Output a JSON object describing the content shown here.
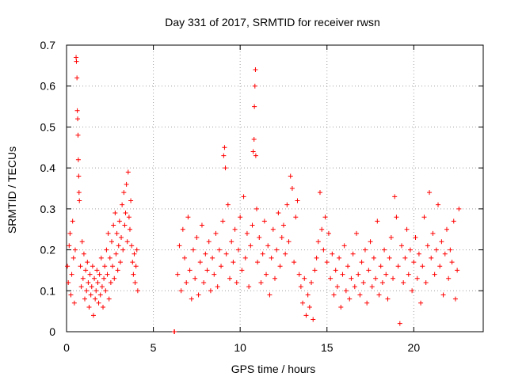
{
  "chart_data": {
    "type": "scatter",
    "title": "Day 331 of 2017, SRMTID for receiver rwsn",
    "xlabel": "GPS time / hours",
    "ylabel": "SRMTID / TECUs",
    "xlim": [
      0,
      24
    ],
    "ylim": [
      0,
      0.7
    ],
    "xticks": [
      "0",
      "5",
      "10",
      "15",
      "20"
    ],
    "yticks": [
      "0",
      "0.1",
      "0.2",
      "0.3",
      "0.4",
      "0.5",
      "0.6",
      "0.7"
    ],
    "grid": true,
    "marker": "+",
    "color": "#ff0000",
    "series": [
      {
        "name": "SRMTID",
        "points": [
          [
            0.05,
            0.16
          ],
          [
            0.1,
            0.12
          ],
          [
            0.15,
            0.21
          ],
          [
            0.2,
            0.24
          ],
          [
            0.25,
            0.09
          ],
          [
            0.3,
            0.14
          ],
          [
            0.35,
            0.27
          ],
          [
            0.4,
            0.18
          ],
          [
            0.45,
            0.07
          ],
          [
            0.5,
            0.2
          ],
          [
            0.55,
            0.67
          ],
          [
            0.57,
            0.66
          ],
          [
            0.6,
            0.62
          ],
          [
            0.62,
            0.54
          ],
          [
            0.64,
            0.52
          ],
          [
            0.66,
            0.48
          ],
          [
            0.68,
            0.42
          ],
          [
            0.7,
            0.38
          ],
          [
            0.72,
            0.34
          ],
          [
            0.74,
            0.32
          ],
          [
            0.8,
            0.16
          ],
          [
            0.85,
            0.11
          ],
          [
            0.9,
            0.22
          ],
          [
            0.95,
            0.13
          ],
          [
            1.0,
            0.19
          ],
          [
            1.05,
            0.08
          ],
          [
            1.1,
            0.15
          ],
          [
            1.15,
            0.1
          ],
          [
            1.2,
            0.17
          ],
          [
            1.25,
            0.12
          ],
          [
            1.3,
            0.06
          ],
          [
            1.35,
            0.14
          ],
          [
            1.4,
            0.09
          ],
          [
            1.45,
            0.11
          ],
          [
            1.5,
            0.16
          ],
          [
            1.55,
            0.04
          ],
          [
            1.6,
            0.13
          ],
          [
            1.65,
            0.08
          ],
          [
            1.7,
            0.1
          ],
          [
            1.75,
            0.15
          ],
          [
            1.8,
            0.12
          ],
          [
            1.85,
            0.07
          ],
          [
            1.9,
            0.14
          ],
          [
            1.95,
            0.09
          ],
          [
            2.0,
            0.18
          ],
          [
            2.05,
            0.11
          ],
          [
            2.1,
            0.06
          ],
          [
            2.15,
            0.13
          ],
          [
            2.2,
            0.16
          ],
          [
            2.25,
            0.1
          ],
          [
            2.3,
            0.2
          ],
          [
            2.35,
            0.14
          ],
          [
            2.4,
            0.24
          ],
          [
            2.45,
            0.08
          ],
          [
            2.5,
            0.18
          ],
          [
            2.55,
            0.12
          ],
          [
            2.6,
            0.22
          ],
          [
            2.65,
            0.16
          ],
          [
            2.7,
            0.26
          ],
          [
            2.75,
            0.13
          ],
          [
            2.8,
            0.29
          ],
          [
            2.85,
            0.19
          ],
          [
            2.9,
            0.24
          ],
          [
            2.95,
            0.15
          ],
          [
            3.0,
            0.21
          ],
          [
            3.05,
            0.27
          ],
          [
            3.1,
            0.17
          ],
          [
            3.15,
            0.23
          ],
          [
            3.2,
            0.31
          ],
          [
            3.25,
            0.2
          ],
          [
            3.3,
            0.34
          ],
          [
            3.35,
            0.26
          ],
          [
            3.4,
            0.29
          ],
          [
            3.45,
            0.36
          ],
          [
            3.5,
            0.22
          ],
          [
            3.55,
            0.39
          ],
          [
            3.6,
            0.28
          ],
          [
            3.65,
            0.25
          ],
          [
            3.7,
            0.32
          ],
          [
            3.75,
            0.21
          ],
          [
            3.8,
            0.17
          ],
          [
            3.85,
            0.14
          ],
          [
            3.9,
            0.19
          ],
          [
            3.95,
            0.12
          ],
          [
            4.0,
            0.16
          ],
          [
            4.05,
            0.2
          ],
          [
            4.1,
            0.1
          ],
          [
            6.2,
            0.0
          ],
          [
            6.22,
            0.0
          ],
          [
            6.4,
            0.14
          ],
          [
            6.5,
            0.21
          ],
          [
            6.6,
            0.1
          ],
          [
            6.7,
            0.25
          ],
          [
            6.8,
            0.18
          ],
          [
            6.9,
            0.12
          ],
          [
            7.0,
            0.28
          ],
          [
            7.1,
            0.15
          ],
          [
            7.2,
            0.08
          ],
          [
            7.3,
            0.2
          ],
          [
            7.4,
            0.13
          ],
          [
            7.5,
            0.23
          ],
          [
            7.6,
            0.09
          ],
          [
            7.7,
            0.17
          ],
          [
            7.8,
            0.26
          ],
          [
            7.9,
            0.12
          ],
          [
            8.0,
            0.19
          ],
          [
            8.1,
            0.15
          ],
          [
            8.2,
            0.22
          ],
          [
            8.3,
            0.1
          ],
          [
            8.4,
            0.18
          ],
          [
            8.5,
            0.14
          ],
          [
            8.6,
            0.24
          ],
          [
            8.7,
            0.11
          ],
          [
            8.8,
            0.2
          ],
          [
            8.9,
            0.16
          ],
          [
            9.0,
            0.27
          ],
          [
            9.05,
            0.43
          ],
          [
            9.1,
            0.45
          ],
          [
            9.15,
            0.4
          ],
          [
            9.2,
            0.19
          ],
          [
            9.3,
            0.31
          ],
          [
            9.4,
            0.13
          ],
          [
            9.5,
            0.22
          ],
          [
            9.6,
            0.17
          ],
          [
            9.7,
            0.25
          ],
          [
            9.8,
            0.12
          ],
          [
            9.9,
            0.2
          ],
          [
            10.0,
            0.28
          ],
          [
            10.1,
            0.15
          ],
          [
            10.2,
            0.33
          ],
          [
            10.3,
            0.18
          ],
          [
            10.4,
            0.24
          ],
          [
            10.5,
            0.11
          ],
          [
            10.6,
            0.21
          ],
          [
            10.7,
            0.26
          ],
          [
            10.75,
            0.44
          ],
          [
            10.8,
            0.47
          ],
          [
            10.82,
            0.55
          ],
          [
            10.85,
            0.6
          ],
          [
            10.88,
            0.64
          ],
          [
            10.9,
            0.43
          ],
          [
            10.95,
            0.3
          ],
          [
            11.0,
            0.17
          ],
          [
            11.1,
            0.23
          ],
          [
            11.2,
            0.12
          ],
          [
            11.3,
            0.19
          ],
          [
            11.4,
            0.27
          ],
          [
            11.5,
            0.14
          ],
          [
            11.6,
            0.21
          ],
          [
            11.7,
            0.09
          ],
          [
            11.8,
            0.18
          ],
          [
            11.9,
            0.25
          ],
          [
            12.0,
            0.13
          ],
          [
            12.1,
            0.2
          ],
          [
            12.2,
            0.29
          ],
          [
            12.3,
            0.16
          ],
          [
            12.4,
            0.23
          ],
          [
            12.5,
            0.26
          ],
          [
            12.6,
            0.19
          ],
          [
            12.7,
            0.31
          ],
          [
            12.8,
            0.22
          ],
          [
            12.9,
            0.38
          ],
          [
            13.0,
            0.35
          ],
          [
            13.1,
            0.17
          ],
          [
            13.2,
            0.28
          ],
          [
            13.3,
            0.32
          ],
          [
            13.4,
            0.14
          ],
          [
            13.5,
            0.11
          ],
          [
            13.6,
            0.07
          ],
          [
            13.7,
            0.13
          ],
          [
            13.8,
            0.04
          ],
          [
            13.9,
            0.09
          ],
          [
            14.0,
            0.06
          ],
          [
            14.1,
            0.12
          ],
          [
            14.2,
            0.03
          ],
          [
            14.3,
            0.15
          ],
          [
            14.4,
            0.18
          ],
          [
            14.5,
            0.22
          ],
          [
            14.6,
            0.34
          ],
          [
            14.7,
            0.25
          ],
          [
            14.8,
            0.2
          ],
          [
            14.9,
            0.28
          ],
          [
            15.0,
            0.17
          ],
          [
            15.1,
            0.24
          ],
          [
            15.2,
            0.13
          ],
          [
            15.3,
            0.19
          ],
          [
            15.4,
            0.09
          ],
          [
            15.5,
            0.15
          ],
          [
            15.6,
            0.11
          ],
          [
            15.7,
            0.18
          ],
          [
            15.8,
            0.06
          ],
          [
            15.9,
            0.14
          ],
          [
            16.0,
            0.21
          ],
          [
            16.1,
            0.1
          ],
          [
            16.2,
            0.16
          ],
          [
            16.3,
            0.08
          ],
          [
            16.4,
            0.13
          ],
          [
            16.5,
            0.19
          ],
          [
            16.6,
            0.11
          ],
          [
            16.7,
            0.24
          ],
          [
            16.8,
            0.14
          ],
          [
            16.9,
            0.09
          ],
          [
            17.0,
            0.17
          ],
          [
            17.1,
            0.12
          ],
          [
            17.2,
            0.2
          ],
          [
            17.3,
            0.07
          ],
          [
            17.4,
            0.15
          ],
          [
            17.5,
            0.22
          ],
          [
            17.6,
            0.11
          ],
          [
            17.7,
            0.18
          ],
          [
            17.8,
            0.13
          ],
          [
            17.9,
            0.27
          ],
          [
            18.0,
            0.09
          ],
          [
            18.1,
            0.16
          ],
          [
            18.2,
            0.12
          ],
          [
            18.3,
            0.2
          ],
          [
            18.4,
            0.14
          ],
          [
            18.5,
            0.08
          ],
          [
            18.6,
            0.18
          ],
          [
            18.7,
            0.23
          ],
          [
            18.8,
            0.13
          ],
          [
            18.9,
            0.33
          ],
          [
            19.0,
            0.28
          ],
          [
            19.1,
            0.16
          ],
          [
            19.2,
            0.02
          ],
          [
            19.3,
            0.21
          ],
          [
            19.4,
            0.12
          ],
          [
            19.5,
            0.18
          ],
          [
            19.6,
            0.25
          ],
          [
            19.7,
            0.14
          ],
          [
            19.8,
            0.2
          ],
          [
            19.9,
            0.1
          ],
          [
            20.0,
            0.17
          ],
          [
            20.1,
            0.23
          ],
          [
            20.2,
            0.13
          ],
          [
            20.3,
            0.19
          ],
          [
            20.4,
            0.07
          ],
          [
            20.5,
            0.16
          ],
          [
            20.6,
            0.28
          ],
          [
            20.7,
            0.12
          ],
          [
            20.8,
            0.21
          ],
          [
            20.9,
            0.34
          ],
          [
            21.0,
            0.18
          ],
          [
            21.1,
            0.24
          ],
          [
            21.2,
            0.14
          ],
          [
            21.3,
            0.2
          ],
          [
            21.4,
            0.31
          ],
          [
            21.5,
            0.16
          ],
          [
            21.6,
            0.22
          ],
          [
            21.7,
            0.09
          ],
          [
            21.8,
            0.19
          ],
          [
            21.9,
            0.25
          ],
          [
            22.0,
            0.13
          ],
          [
            22.1,
            0.2
          ],
          [
            22.2,
            0.17
          ],
          [
            22.3,
            0.27
          ],
          [
            22.4,
            0.08
          ],
          [
            22.5,
            0.15
          ],
          [
            22.6,
            0.3
          ]
        ]
      }
    ]
  }
}
